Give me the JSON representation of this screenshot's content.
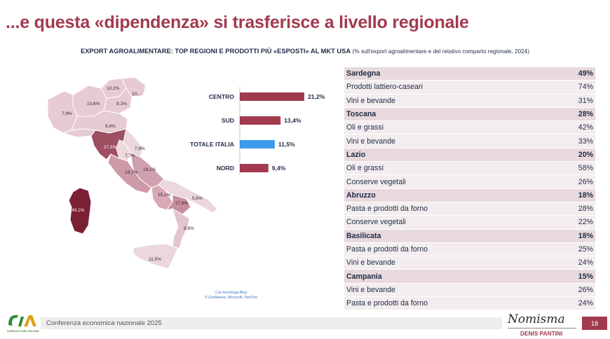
{
  "title": "...e questa «dipendenza» si trasferisce a livello regionale",
  "subtitle": {
    "main": "EXPORT AGROALIMENTARE: TOP REGIONI E PRODOTTI PIÙ «ESPOSTI» AL MKT USA",
    "note": "(% sull'export agroalimentare e del relativo comparto regionale, 2024)"
  },
  "map": {
    "credit_line1": "Con tecnologia Bing",
    "credit_line2": "© GeoNames, Microsoft, TomTom",
    "labels": {
      "trentino": "10,2%",
      "alto_adige": "10,...",
      "lombardia": "10,6%",
      "veneto": "9,1%",
      "piemonte": "7,9%",
      "emilia": "9,4%",
      "toscana": "27,5%",
      "umbria": "7,7%",
      "marche": "7,6%",
      "lazio": "19,7%",
      "abruzzo": "18,1%",
      "campania": "15,1%",
      "basilicata": "17,8%",
      "puglia": "5,6%",
      "calabria": "8,8%",
      "sicilia": "11,5%",
      "sardegna": "49,1%"
    }
  },
  "chart_data": {
    "type": "bar",
    "orientation": "horizontal",
    "categories": [
      "CENTRO",
      "SUD",
      "TOTALE ITALIA",
      "NORD"
    ],
    "values": [
      21.2,
      13.4,
      11.5,
      9.4
    ],
    "value_labels": [
      "21,2%",
      "13,4%",
      "11,5%",
      "9,4%"
    ],
    "colors": [
      "#a23a4f",
      "#a23a4f",
      "#3c9bea",
      "#a23a4f"
    ],
    "xlim": [
      0,
      22
    ]
  },
  "table": [
    {
      "type": "region",
      "label": "Sardegna",
      "value": "49%"
    },
    {
      "type": "product",
      "label": "Prodotti lattiero-caseari",
      "value": "74%"
    },
    {
      "type": "product",
      "label": "Vini e bevande",
      "value": "31%"
    },
    {
      "type": "region",
      "label": "Toscana",
      "value": "28%"
    },
    {
      "type": "product",
      "label": "Oli e grassi",
      "value": "42%"
    },
    {
      "type": "product",
      "label": "Vini e bevande",
      "value": "33%"
    },
    {
      "type": "region",
      "label": "Lazio",
      "value": "20%"
    },
    {
      "type": "product",
      "label": "Oli e grassi",
      "value": "58%"
    },
    {
      "type": "product",
      "label": "Conserve vegetali",
      "value": "26%"
    },
    {
      "type": "region",
      "label": "Abruzzo",
      "value": "18%"
    },
    {
      "type": "product",
      "label": "Pasta e prodotti da forno",
      "value": "28%"
    },
    {
      "type": "product",
      "label": "Conserve vegetali",
      "value": "22%"
    },
    {
      "type": "region",
      "label": "Basilicata",
      "value": "18%"
    },
    {
      "type": "product",
      "label": "Pasta e prodotti da forno",
      "value": "25%"
    },
    {
      "type": "product",
      "label": "Vini e bevande",
      "value": "24%"
    },
    {
      "type": "region",
      "label": "Campania",
      "value": "15%"
    },
    {
      "type": "product",
      "label": "Vini e bevande",
      "value": "26%"
    },
    {
      "type": "product",
      "label": "Pasta e prodotti da forno",
      "value": "24%"
    }
  ],
  "footer": {
    "logo_text": "AGRICOLTORI ITALIANI",
    "conference": "Conferenza economica nazionale 2025",
    "brand": "Nomisma",
    "author": "DENIS PANTINI",
    "page_number": "18"
  },
  "colors": {
    "accent": "#a23a4f",
    "highlight_bar": "#3c9bea",
    "region_row": "#e7d9dd",
    "product_row": "#f3edef"
  }
}
